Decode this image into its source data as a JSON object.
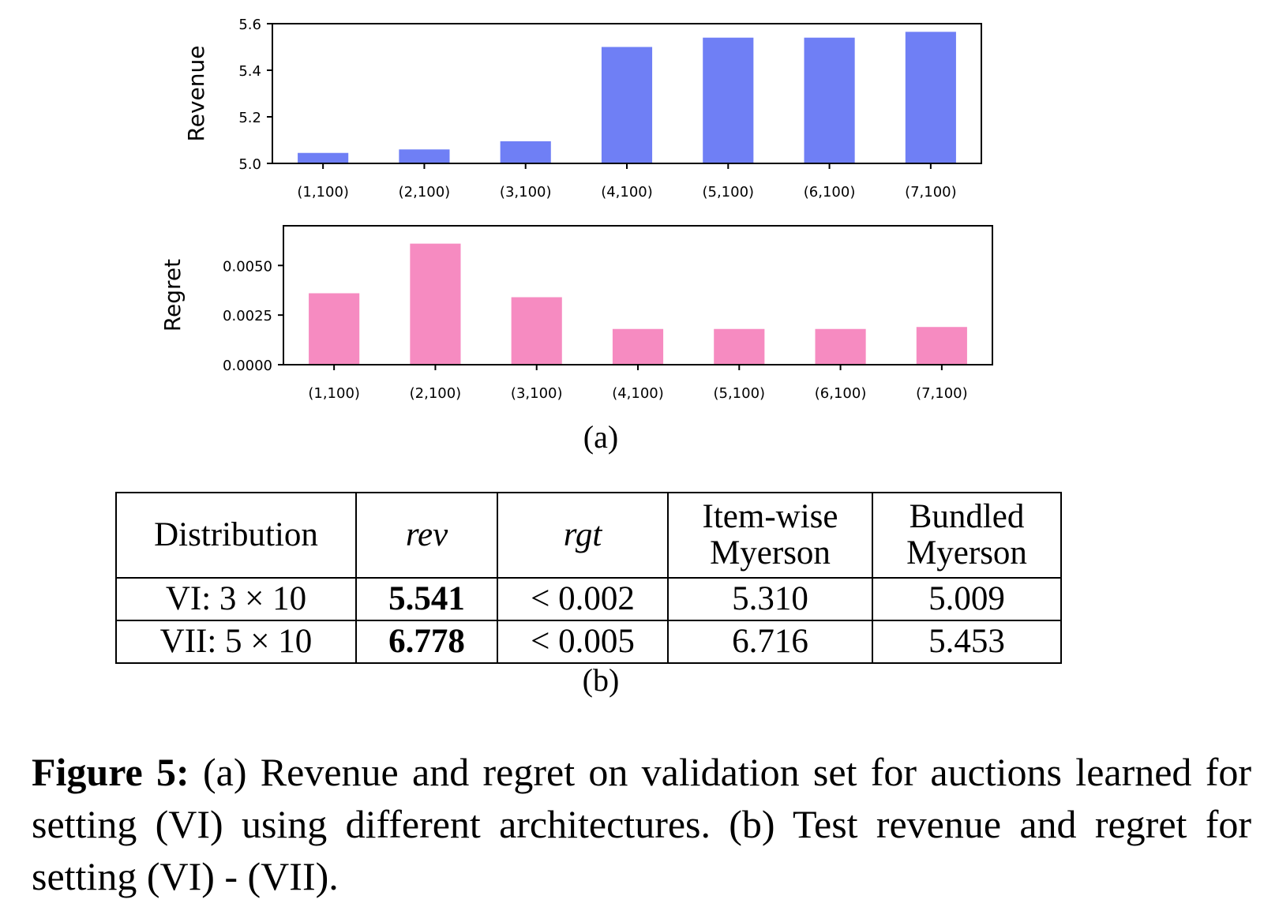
{
  "chart_data": [
    {
      "type": "bar",
      "categories": [
        "(1,100)",
        "(2,100)",
        "(3,100)",
        "(4,100)",
        "(5,100)",
        "(6,100)",
        "(7,100)"
      ],
      "values": [
        5.045,
        5.06,
        5.095,
        5.5,
        5.54,
        5.54,
        5.565
      ],
      "ylabel": "Revenue",
      "ylim": [
        5.0,
        5.6
      ],
      "yticks": [
        5.0,
        5.2,
        5.4,
        5.6
      ],
      "ytick_labels": [
        "5.0",
        "5.2",
        "5.4",
        "5.6"
      ],
      "color": "#6f7ff5"
    },
    {
      "type": "bar",
      "categories": [
        "(1,100)",
        "(2,100)",
        "(3,100)",
        "(4,100)",
        "(5,100)",
        "(6,100)",
        "(7,100)"
      ],
      "values": [
        0.0036,
        0.0061,
        0.0034,
        0.0018,
        0.0018,
        0.0018,
        0.0019
      ],
      "ylabel": "Regret",
      "ylim": [
        0.0,
        0.007
      ],
      "yticks": [
        0.0,
        0.0025,
        0.005
      ],
      "ytick_labels": [
        "0.0000",
        "0.0025",
        "0.0050"
      ],
      "color": "#f68bc1"
    }
  ],
  "subcaption_a": "(a)",
  "subcaption_b": "(b)",
  "table": {
    "headers": [
      "Distribution",
      "rev",
      "rgt",
      "Item-wise",
      "Myerson",
      "Bundled",
      "Myerson"
    ],
    "rows": [
      {
        "dist": "VI: 3 × 10",
        "rev": "5.541",
        "rgt": "< 0.002",
        "itemwise": "5.310",
        "bundled": "5.009"
      },
      {
        "dist": "VII: 5 × 10",
        "rev": "6.778",
        "rgt": "< 0.005",
        "itemwise": "6.716",
        "bundled": "5.453"
      }
    ]
  },
  "caption": {
    "label": "Figure 5:",
    "text": "(a) Revenue and regret on validation set for auctions learned for setting (VI) using different architectures.   (b) Test revenue and regret for setting (VI) - (VII)."
  }
}
